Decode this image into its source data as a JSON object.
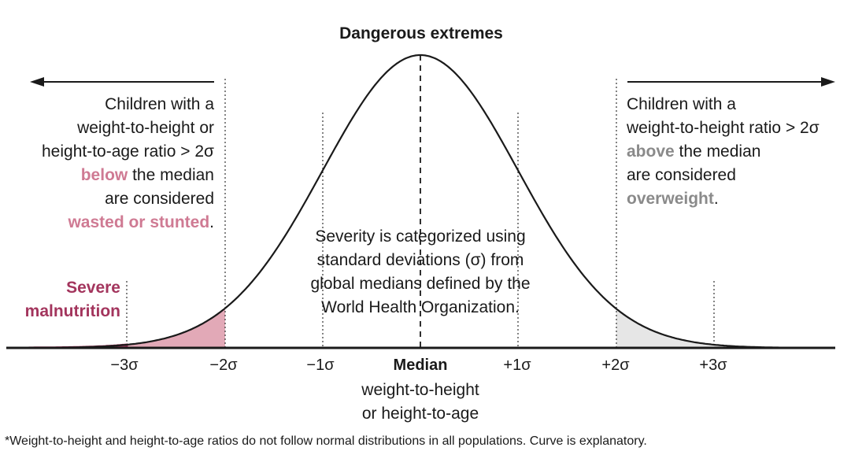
{
  "title": "Dangerous extremes",
  "left_text": {
    "line1": "Children with a",
    "line2": "weight-to-height or",
    "line3": "height-to-age ratio > 2σ",
    "line4_em": "below",
    "line4_rest": " the median",
    "line5": "are considered",
    "line6_em": "wasted or stunted",
    "line6_rest": "."
  },
  "right_text": {
    "line1": "Children with a",
    "line2": "weight-to-height ratio > 2σ",
    "line3_em": "above",
    "line3_rest": " the median",
    "line4": "are considered",
    "line5_em": "overweight",
    "line5_rest": "."
  },
  "center_text": {
    "line1": "Severity is categorized using",
    "line2": "standard deviations (σ) from",
    "line3": "global medians defined by the",
    "line4": "World Health Organization."
  },
  "severe_label": {
    "line1": "Severe",
    "line2": "malnutrition"
  },
  "ticks": {
    "m3": "−3σ",
    "m2": "−2σ",
    "m1": "−1σ",
    "median": "Median",
    "p1": "+1σ",
    "p2": "+2σ",
    "p3": "+3σ"
  },
  "median_sub": {
    "line1": "weight-to-height",
    "line2": "or height-to-age"
  },
  "footnote": "*Weight-to-height and height-to-age ratios do not follow normal distributions in all populations. Curve is explanatory.",
  "colors": {
    "curve": "#1a1a1a",
    "wasted_fill": "#e2a9b7",
    "severe_fill": "#b84a70",
    "severe_outline": "#9c2c55",
    "overweight_fill": "#e6e6e6",
    "pink_text": "#cf7a93",
    "gray_text": "#8a8a8a"
  }
}
